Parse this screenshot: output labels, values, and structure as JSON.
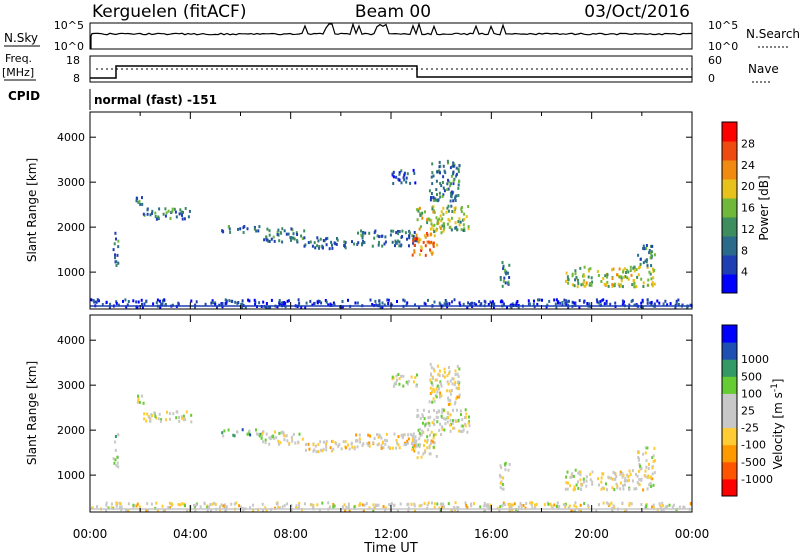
{
  "header": {
    "station": "Kerguelen (fitACF)",
    "beam": "Beam 00",
    "date": "03/Oct/2016"
  },
  "summary_panels": {
    "nsky_label": "N.Sky",
    "nsky_ticks": [
      "10^5",
      "10^0"
    ],
    "nsearch_label": "N.Search",
    "nsearch_ticks": [
      "10^5",
      "10^0"
    ],
    "freq_label": "Freq.",
    "freq_unit": "[MHz]",
    "freq_ticks": [
      "18",
      "8"
    ],
    "nave_label": "Nave",
    "nave_ticks": [
      "60",
      "0"
    ],
    "cpid_label": "CPID",
    "cpid_value": "normal (fast) -151"
  },
  "colors": {
    "power": [
      "#0000ff",
      "#1e3fb4",
      "#2a6a8a",
      "#3e8d5f",
      "#6fb83a",
      "#e8c21c",
      "#f08a10",
      "#ef4a10",
      "#ff0000"
    ],
    "velocity": [
      "#ff0000",
      "#ff5500",
      "#ff9900",
      "#ffcc33",
      "#c8c8c8",
      "#c8c8c8",
      "#66cc33",
      "#339966",
      "#1e50b4",
      "#0000ff"
    ]
  },
  "chart_data": [
    {
      "type": "heatmap",
      "name": "power",
      "xlabel": "Time UT",
      "ylabel": "Slant Range [km]",
      "x_ticks": [
        "00:00",
        "04:00",
        "08:00",
        "12:00",
        "16:00",
        "20:00",
        "00:00"
      ],
      "xlim_hours": [
        0,
        24
      ],
      "y_ticks": [
        "1000",
        "2000",
        "3000",
        "4000"
      ],
      "ylim_km": [
        180,
        4560
      ],
      "colorbar_label": "Power [dB]",
      "colorbar_ticks": [
        "4",
        "8",
        "12",
        "16",
        "20",
        "24",
        "28"
      ],
      "colorbar_range": [
        0,
        32
      ],
      "segments": [
        {
          "t": [
            0.0,
            24.0
          ],
          "r": [
            240,
            420
          ],
          "level": 0.15
        },
        {
          "t": [
            0.9,
            1.1
          ],
          "r": [
            1150,
            1950
          ],
          "level": 0.3
        },
        {
          "t": [
            1.8,
            2.1
          ],
          "r": [
            2500,
            2800
          ],
          "level": 0.3
        },
        {
          "t": [
            2.1,
            4.0
          ],
          "r": [
            2200,
            2450
          ],
          "level": 0.3
        },
        {
          "t": [
            5.2,
            6.8
          ],
          "r": [
            1900,
            2050
          ],
          "level": 0.3
        },
        {
          "t": [
            6.8,
            8.5
          ],
          "r": [
            1700,
            2000
          ],
          "level": 0.3
        },
        {
          "t": [
            8.5,
            10.5
          ],
          "r": [
            1550,
            1800
          ],
          "level": 0.25
        },
        {
          "t": [
            10.5,
            13.0
          ],
          "r": [
            1600,
            1950
          ],
          "level": 0.3
        },
        {
          "t": [
            12.0,
            13.0
          ],
          "r": [
            3000,
            3300
          ],
          "level": 0.2
        },
        {
          "t": [
            13.0,
            14.2
          ],
          "r": [
            1900,
            2500
          ],
          "level": 0.55
        },
        {
          "t": [
            12.8,
            13.8
          ],
          "r": [
            1400,
            1900
          ],
          "level": 0.75
        },
        {
          "t": [
            14.2,
            15.1
          ],
          "r": [
            1950,
            2500
          ],
          "level": 0.45
        },
        {
          "t": [
            13.5,
            14.7
          ],
          "r": [
            2600,
            3500
          ],
          "level": 0.3
        },
        {
          "t": [
            16.3,
            16.7
          ],
          "r": [
            700,
            1300
          ],
          "level": 0.35
        },
        {
          "t": [
            18.9,
            20.0
          ],
          "r": [
            700,
            1150
          ],
          "level": 0.5
        },
        {
          "t": [
            20.2,
            22.5
          ],
          "r": [
            700,
            1150
          ],
          "level": 0.55
        },
        {
          "t": [
            21.8,
            22.5
          ],
          "r": [
            1150,
            1650
          ],
          "level": 0.3
        }
      ]
    },
    {
      "type": "heatmap",
      "name": "velocity",
      "xlabel": "Time UT",
      "ylabel": "Slant Range [km]",
      "x_ticks": [
        "00:00",
        "04:00",
        "08:00",
        "12:00",
        "16:00",
        "20:00",
        "00:00"
      ],
      "xlim_hours": [
        0,
        24
      ],
      "y_ticks": [
        "1000",
        "2000",
        "3000",
        "4000"
      ],
      "ylim_km": [
        180,
        4560
      ],
      "colorbar_label": "Velocity [m s",
      "colorbar_unit_sup": "-1",
      "colorbar_ticks": [
        "-1000",
        "-500",
        "-100",
        "-25",
        "25",
        "100",
        "500",
        "1000"
      ],
      "segments": [
        {
          "t": [
            0.0,
            24.0
          ],
          "r": [
            240,
            420
          ],
          "level": 0.45
        },
        {
          "t": [
            0.9,
            1.1
          ],
          "r": [
            1150,
            1950
          ],
          "level": 0.55
        },
        {
          "t": [
            1.8,
            2.1
          ],
          "r": [
            2500,
            2800
          ],
          "level": 0.5
        },
        {
          "t": [
            2.1,
            4.0
          ],
          "r": [
            2200,
            2450
          ],
          "level": 0.45
        },
        {
          "t": [
            5.2,
            6.8
          ],
          "r": [
            1900,
            2050
          ],
          "level": 0.7
        },
        {
          "t": [
            6.8,
            8.5
          ],
          "r": [
            1700,
            2000
          ],
          "level": 0.5
        },
        {
          "t": [
            8.5,
            10.5
          ],
          "r": [
            1550,
            1800
          ],
          "level": 0.42
        },
        {
          "t": [
            10.5,
            13.0
          ],
          "r": [
            1600,
            1950
          ],
          "level": 0.42
        },
        {
          "t": [
            12.0,
            13.0
          ],
          "r": [
            3000,
            3300
          ],
          "level": 0.5
        },
        {
          "t": [
            13.0,
            14.2
          ],
          "r": [
            1900,
            2500
          ],
          "level": 0.5
        },
        {
          "t": [
            12.8,
            13.8
          ],
          "r": [
            1400,
            1900
          ],
          "level": 0.45
        },
        {
          "t": [
            14.2,
            15.1
          ],
          "r": [
            1950,
            2500
          ],
          "level": 0.5
        },
        {
          "t": [
            13.5,
            14.7
          ],
          "r": [
            2600,
            3500
          ],
          "level": 0.45
        },
        {
          "t": [
            16.3,
            16.7
          ],
          "r": [
            700,
            1300
          ],
          "level": 0.5
        },
        {
          "t": [
            18.9,
            20.0
          ],
          "r": [
            700,
            1150
          ],
          "level": 0.5
        },
        {
          "t": [
            20.2,
            22.5
          ],
          "r": [
            700,
            1150
          ],
          "level": 0.45
        },
        {
          "t": [
            21.8,
            22.5
          ],
          "r": [
            1150,
            1650
          ],
          "level": 0.5
        }
      ]
    }
  ]
}
